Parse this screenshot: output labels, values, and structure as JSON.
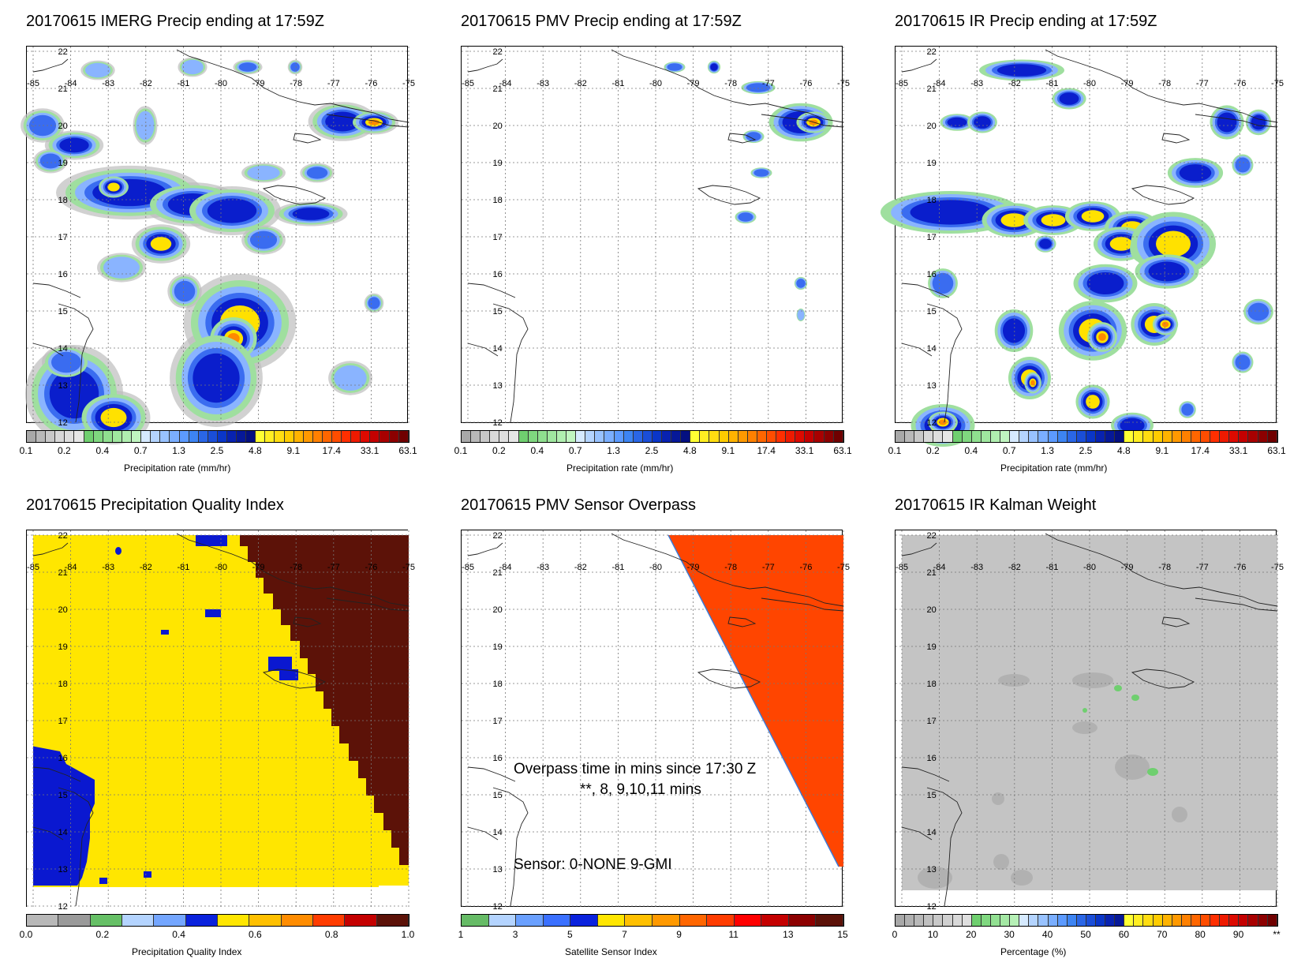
{
  "panels": [
    {
      "title": "20170615 IMERG Precip ending at 17:59Z",
      "cb_label": "Precipitation rate (mm/hr)",
      "cbar": "precip"
    },
    {
      "title": "20170615 PMV Precip ending at 17:59Z",
      "cb_label": "Precipitation rate (mm/hr)",
      "cbar": "precip"
    },
    {
      "title": "20170615 IR Precip ending at 17:59Z",
      "cb_label": "Precipitation rate (mm/hr)",
      "cbar": "precip"
    },
    {
      "title": "20170615 Precipitation Quality Index",
      "cb_label": "Precipitation Quality Index",
      "cbar": "pqi"
    },
    {
      "title": "20170615 PMV Sensor Overpass",
      "cb_label": "Satellite Sensor Index",
      "cbar": "sensor"
    },
    {
      "title": "20170615 IR Kalman Weight",
      "cb_label": "Percentage (%)",
      "cbar": "pct"
    }
  ],
  "map_axes": {
    "lon_labels": [
      "-85",
      "-84",
      "-83",
      "-82",
      "-81",
      "-80",
      "-79",
      "-78",
      "-77",
      "-76",
      "-75"
    ],
    "lat_labels": [
      "22",
      "21",
      "20",
      "19",
      "18",
      "17",
      "16",
      "15",
      "14",
      "13",
      "12"
    ]
  },
  "colorbars": {
    "precip": {
      "ticks": [
        "0.1",
        "0.2",
        "0.4",
        "0.7",
        "1.3",
        "2.5",
        "4.8",
        "9.1",
        "17.4",
        "33.1",
        "63.1"
      ],
      "colors": [
        "#a8a8a8",
        "#b8b8b8",
        "#c8c8c8",
        "#d8d8d8",
        "#dedede",
        "#e6e6e6",
        "#6fcf6f",
        "#7fd77f",
        "#8fdf8f",
        "#9fe79f",
        "#b0efb0",
        "#c0f5c0",
        "#d6eaff",
        "#b4d4ff",
        "#98c2ff",
        "#7aaeff",
        "#5c9aff",
        "#3d84f2",
        "#2a66e6",
        "#1a4ed8",
        "#0a36c8",
        "#0822b0",
        "#061898",
        "#041080",
        "#ffff33",
        "#ffee22",
        "#ffdd11",
        "#ffcc00",
        "#ffb300",
        "#ff9900",
        "#ff8000",
        "#ff6600",
        "#ff4d00",
        "#ff2f00",
        "#ee1a00",
        "#dd0a00",
        "#c40000",
        "#a80000",
        "#8c0000",
        "#700000"
      ]
    },
    "pqi": {
      "ticks": [
        "0.0",
        "0.2",
        "0.4",
        "0.6",
        "0.8",
        "1.0"
      ],
      "colors": [
        "#b8b8b8",
        "#9a9a9a",
        "#66c066",
        "#b4d4ff",
        "#74a6ff",
        "#0a22dd",
        "#ffe600",
        "#ffc000",
        "#ff8c00",
        "#ff3c00",
        "#c40000",
        "#5c1208"
      ]
    },
    "sensor": {
      "ticks": [
        "1",
        "3",
        "5",
        "7",
        "9",
        "11",
        "13",
        "15"
      ],
      "colors": [
        "#66bb66",
        "#b4d4ff",
        "#6aa0ff",
        "#3a70ff",
        "#0a22dd",
        "#ffe600",
        "#ffc000",
        "#ff9900",
        "#ff6600",
        "#ff3c00",
        "#ff0000",
        "#c40000",
        "#8c0000",
        "#5c1208"
      ]
    },
    "pct": {
      "ticks": [
        "0",
        "10",
        "20",
        "30",
        "40",
        "50",
        "60",
        "70",
        "80",
        "90",
        "**"
      ],
      "colors": [
        "#a8a8a8",
        "#b0b0b0",
        "#b8b8b8",
        "#c0c0c0",
        "#c8c8c8",
        "#d0d0d0",
        "#d8d8d8",
        "#dedede",
        "#6fcf6f",
        "#80d880",
        "#92e092",
        "#a4e8a4",
        "#b6f0b6",
        "#d6eaff",
        "#b4d4ff",
        "#98c2ff",
        "#7aaeff",
        "#5c9aff",
        "#3d84f2",
        "#2a66e6",
        "#1a4ed8",
        "#0a36c8",
        "#0822b0",
        "#061898",
        "#ffff33",
        "#ffee22",
        "#ffdd11",
        "#ffcc00",
        "#ffb300",
        "#ff9900",
        "#ff8000",
        "#ff6600",
        "#ff4d00",
        "#ff2f00",
        "#ee1a00",
        "#dd0a00",
        "#c40000",
        "#a80000",
        "#8c0000",
        "#700000"
      ]
    }
  },
  "overpass_text": {
    "line1": "Overpass time in mins since 17:30 Z",
    "line2": "**, 8, 9,10,11 mins",
    "sensor_line": "Sensor:   0-NONE  9-GMI"
  },
  "colors": {
    "pqi_yellow": "#ffe600",
    "pqi_blue": "#0a18d0",
    "pqi_brown": "#5c1208",
    "overpass_orange": "#ff4500",
    "kalman_gray": "#c4c4c4"
  }
}
